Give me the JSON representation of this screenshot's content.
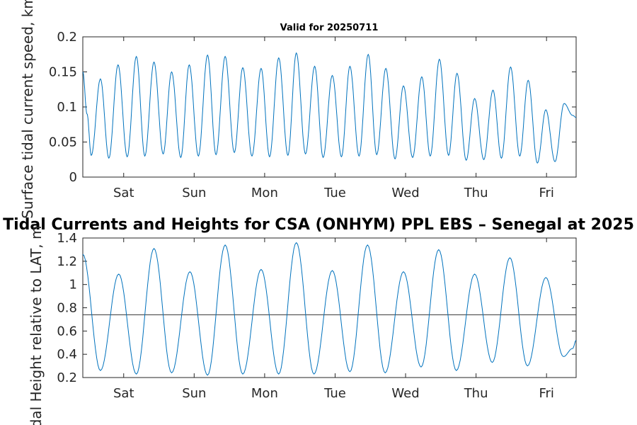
{
  "figure_title": "Tidal Currents and Heights for CSA (ONHYM) PPL EBS  – Senegal at 2025",
  "chart_data": [
    {
      "type": "line",
      "title": "Valid for 20250711",
      "ylabel": "Surface tidal current speed, km",
      "xlabel": "",
      "ylim": [
        0,
        0.2
      ],
      "yticks": [
        "0",
        "0.05",
        "0.1",
        "0.15",
        "0.2"
      ],
      "ytick_values": [
        0,
        0.05,
        0.1,
        0.15,
        0.2
      ],
      "xlim_days": [
        0,
        7
      ],
      "xticks": [
        "Sat",
        "Sun",
        "Mon",
        "Tue",
        "Wed",
        "Thu",
        "Fri"
      ],
      "xtick_days": [
        0.58,
        1.58,
        2.58,
        3.58,
        4.58,
        5.58,
        6.58
      ],
      "line_color": "#0072BD",
      "series": [
        {
          "x_days": [
            0.0,
            0.06,
            0.12,
            0.25,
            0.37,
            0.5,
            0.63,
            0.76,
            0.88,
            1.01,
            1.14,
            1.26,
            1.39,
            1.51,
            1.64,
            1.77,
            1.89,
            2.02,
            2.15,
            2.27,
            2.4,
            2.53,
            2.65,
            2.78,
            2.91,
            3.03,
            3.16,
            3.29,
            3.41,
            3.54,
            3.67,
            3.79,
            3.92,
            4.05,
            4.17,
            4.3,
            4.43,
            4.55,
            4.68,
            4.81,
            4.93,
            5.06,
            5.19,
            5.31,
            5.44,
            5.56,
            5.69,
            5.82,
            5.94,
            6.07,
            6.2,
            6.32,
            6.45,
            6.57,
            6.7,
            6.83,
            6.95,
            7.0
          ],
          "values": [
            0.15,
            0.09,
            0.031,
            0.14,
            0.027,
            0.16,
            0.029,
            0.172,
            0.03,
            0.164,
            0.033,
            0.15,
            0.028,
            0.16,
            0.03,
            0.174,
            0.032,
            0.172,
            0.035,
            0.156,
            0.03,
            0.155,
            0.029,
            0.17,
            0.031,
            0.177,
            0.033,
            0.158,
            0.028,
            0.145,
            0.029,
            0.158,
            0.03,
            0.175,
            0.032,
            0.155,
            0.026,
            0.13,
            0.028,
            0.143,
            0.03,
            0.168,
            0.031,
            0.148,
            0.024,
            0.112,
            0.025,
            0.124,
            0.027,
            0.157,
            0.03,
            0.138,
            0.02,
            0.096,
            0.022,
            0.105,
            0.088,
            0.085
          ]
        }
      ]
    },
    {
      "type": "line",
      "title": "",
      "ylabel": "Tidal Height relative to LAT, m",
      "xlabel": "",
      "ylim": [
        0.2,
        1.4
      ],
      "yticks": [
        "0.2",
        "0.4",
        "0.6",
        "0.8",
        "1",
        "1.2",
        "1.4"
      ],
      "ytick_values": [
        0.2,
        0.4,
        0.6,
        0.8,
        1.0,
        1.2,
        1.4
      ],
      "xlim_days": [
        0,
        7
      ],
      "xticks": [
        "Sat",
        "Sun",
        "Mon",
        "Tue",
        "Wed",
        "Thu",
        "Fri"
      ],
      "xtick_days": [
        0.58,
        1.58,
        2.58,
        3.58,
        4.58,
        5.58,
        6.58
      ],
      "line_color": "#0072BD",
      "reference_line": {
        "y": 0.74,
        "color": "#333333"
      },
      "series": [
        {
          "x_days": [
            0.0,
            0.25,
            0.51,
            0.76,
            1.01,
            1.26,
            1.52,
            1.77,
            2.02,
            2.27,
            2.53,
            2.78,
            3.03,
            3.28,
            3.54,
            3.79,
            4.04,
            4.29,
            4.55,
            4.8,
            5.05,
            5.3,
            5.56,
            5.81,
            6.06,
            6.31,
            6.57,
            6.82,
            6.95,
            7.0
          ],
          "values": [
            1.26,
            0.26,
            1.09,
            0.23,
            1.31,
            0.24,
            1.11,
            0.22,
            1.34,
            0.23,
            1.13,
            0.23,
            1.36,
            0.23,
            1.12,
            0.25,
            1.34,
            0.24,
            1.11,
            0.29,
            1.3,
            0.26,
            1.09,
            0.33,
            1.23,
            0.3,
            1.06,
            0.38,
            0.45,
            0.52
          ]
        }
      ]
    }
  ]
}
